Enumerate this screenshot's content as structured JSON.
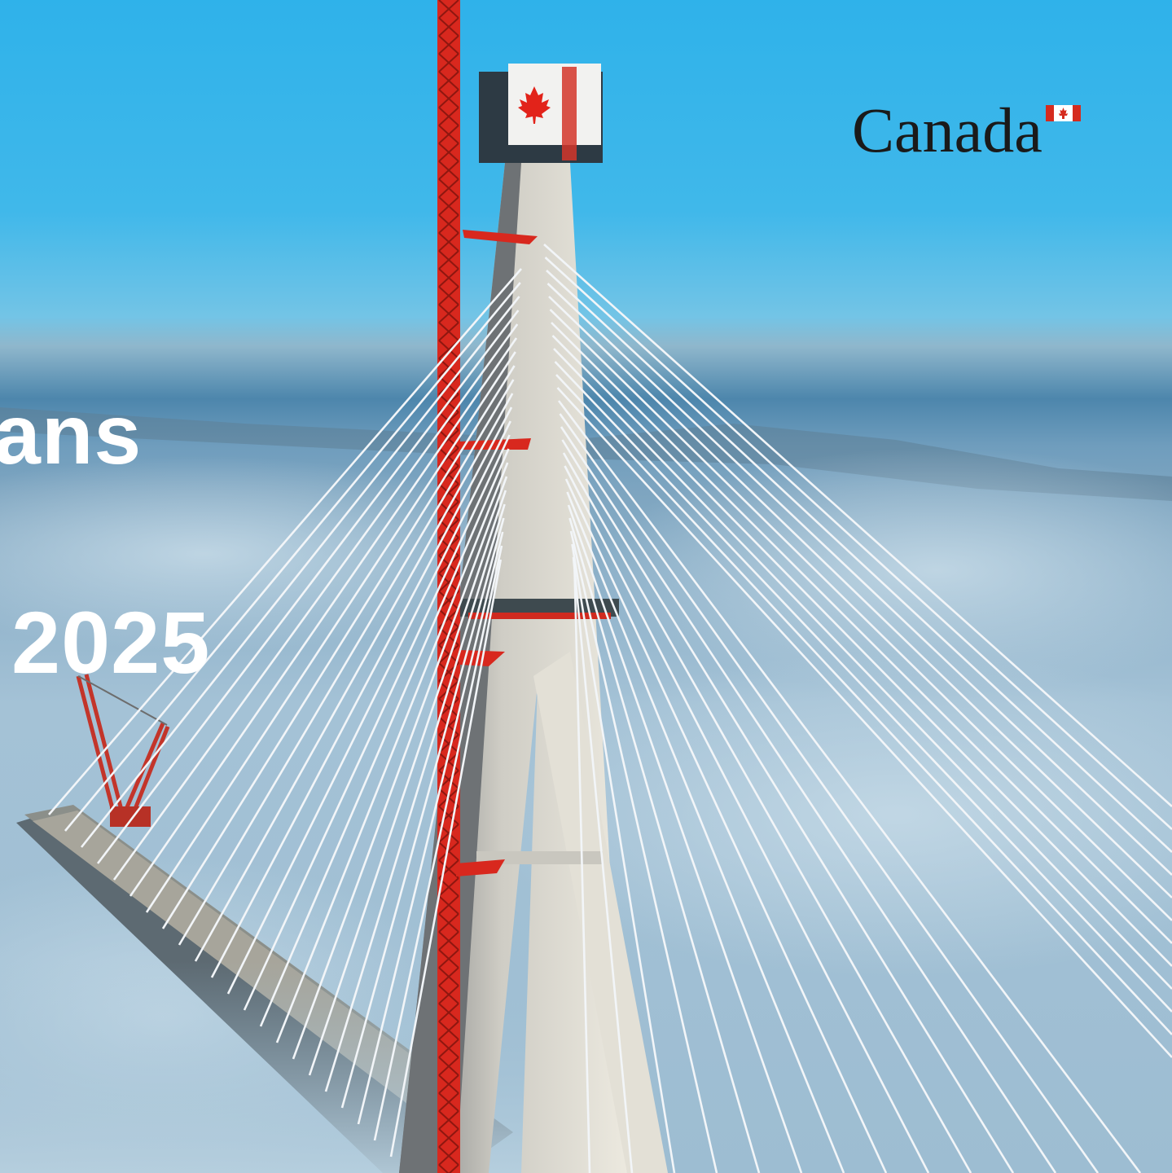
{
  "cover": {
    "title_fragment": "ans",
    "year": "2025"
  },
  "wordmark": {
    "text": "Canada",
    "flag_icon": "canada-flag-icon",
    "flag_color": "#d52b1e"
  },
  "colors": {
    "sky_top": "#38b6ea",
    "sky_horizon": "#7fc3e2",
    "fog": "#a9c9dc",
    "tower_concrete": "#d9d7cf",
    "crane_red": "#d8281e",
    "cable_white": "#f4f6f8"
  },
  "photo": {
    "subject": "cable-stayed-bridge-tower",
    "tower_flag_icon": "maple-leaf-icon"
  }
}
